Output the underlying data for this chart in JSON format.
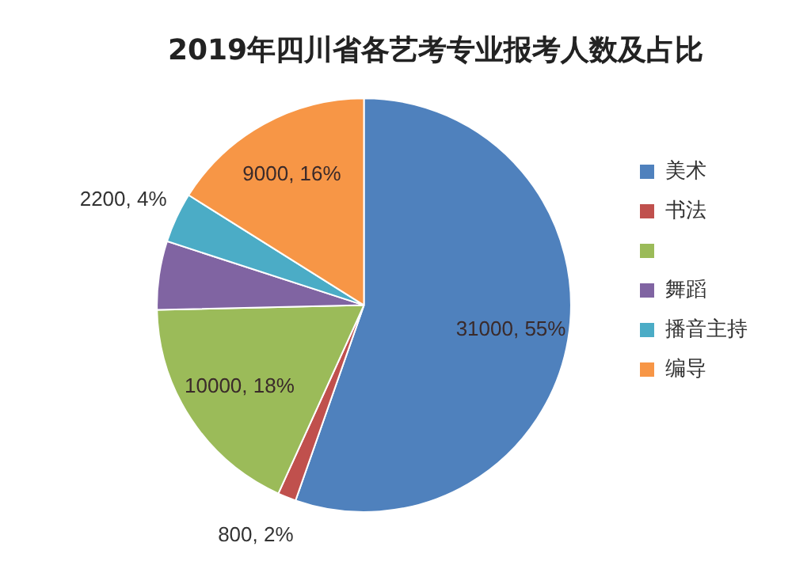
{
  "chart_data": {
    "type": "pie",
    "title": "2019年四川省各艺考专业报考人数及占比",
    "categories": [
      "美术",
      "书法",
      null,
      "舞蹈",
      "播音主持",
      "编导"
    ],
    "values": [
      31000,
      800,
      10000,
      3000,
      2200,
      9000
    ],
    "colors": [
      "#4f81bd",
      "#c0504d",
      "#9bbb59",
      "#8064a2",
      "#4bacc6",
      "#f79646"
    ],
    "value_labels": [
      "31000, 55%",
      "800, 2%",
      "10000, 18%",
      null,
      "2200, 4%",
      "9000, 16%"
    ],
    "legend": "right"
  }
}
